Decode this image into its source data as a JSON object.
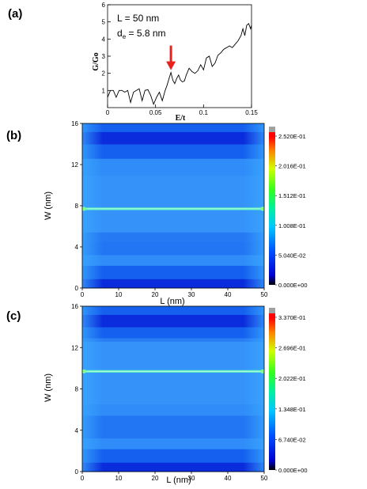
{
  "chart_data": [
    {
      "panel_label": "(a)",
      "type": "line",
      "xlabel": "E/t",
      "ylabel": "G/Go",
      "xlim": [
        0,
        0.15
      ],
      "ylim": [
        0,
        6
      ],
      "x_ticks": [
        "0",
        "0.05",
        "0.1",
        "0.15"
      ],
      "y_ticks": [
        "1",
        "2",
        "3",
        "4",
        "5",
        "6"
      ],
      "annotations": [
        "L = 50 nm",
        "d",
        "e",
        " = 5.8 nm"
      ],
      "arrow": {
        "x": 0.066,
        "y": 2.05,
        "color": "#e8211c"
      },
      "series": [
        {
          "x": [
            0.0,
            0.003,
            0.006,
            0.009,
            0.012,
            0.015,
            0.018,
            0.021,
            0.024,
            0.027,
            0.03,
            0.033,
            0.036,
            0.039,
            0.042,
            0.045,
            0.048,
            0.051,
            0.054,
            0.057,
            0.06,
            0.062,
            0.064,
            0.066,
            0.068,
            0.07,
            0.072,
            0.074,
            0.076,
            0.078,
            0.08,
            0.082,
            0.085,
            0.088,
            0.091,
            0.094,
            0.097,
            0.1,
            0.103,
            0.106,
            0.109,
            0.112,
            0.115,
            0.118,
            0.121,
            0.124,
            0.127,
            0.13,
            0.133,
            0.136,
            0.139,
            0.141,
            0.143,
            0.145,
            0.147,
            0.149,
            0.15
          ],
          "y": [
            0.6,
            1.0,
            1.0,
            0.6,
            1.0,
            1.0,
            0.9,
            1.0,
            0.3,
            0.9,
            1.0,
            1.1,
            0.4,
            1.0,
            1.05,
            0.7,
            0.2,
            0.6,
            0.9,
            0.4,
            1.0,
            1.3,
            1.7,
            2.05,
            1.6,
            1.4,
            1.7,
            1.9,
            1.6,
            1.5,
            1.55,
            1.9,
            2.3,
            2.1,
            2.0,
            2.15,
            2.5,
            2.2,
            2.9,
            3.0,
            2.4,
            2.6,
            3.05,
            3.2,
            3.4,
            3.5,
            3.6,
            3.5,
            3.7,
            3.9,
            4.2,
            4.6,
            4.2,
            4.8,
            4.9,
            4.6,
            4.8
          ],
          "color": "#000000"
        }
      ]
    },
    {
      "panel_label": "(b)",
      "type": "heatmap",
      "xlabel": "L (nm)",
      "ylabel": "W (nm)",
      "xlim": [
        0,
        50
      ],
      "ylim": [
        0,
        16
      ],
      "x_ticks": [
        "0",
        "10",
        "20",
        "30",
        "40",
        "50"
      ],
      "y_ticks": [
        "0",
        "4",
        "8",
        "12",
        "16"
      ],
      "defect_line_w": 7.7,
      "colorbar_ticks": [
        "2.520E-01",
        "2.016E-01",
        "1.512E-01",
        "1.008E-01",
        "5.040E-02",
        "0.000E+00"
      ],
      "colorbar_max": 0.252
    },
    {
      "panel_label": "(c)",
      "type": "heatmap",
      "xlabel": "L (nm)",
      "ylabel": "W (nm)",
      "xlim": [
        0,
        50
      ],
      "ylim": [
        0,
        16
      ],
      "x_ticks": [
        "0",
        "10",
        "20",
        "30",
        "40",
        "50"
      ],
      "y_ticks": [
        "0",
        "4",
        "8",
        "12",
        "16"
      ],
      "defect_line_w": 9.7,
      "colorbar_ticks": [
        "3.370E-01",
        "2.696E-01",
        "2.022E-01",
        "1.348E-01",
        "6.740E-02",
        "0.000E+00"
      ],
      "colorbar_max": 0.337
    }
  ],
  "colors": {
    "colorbar_stops": [
      "#000000",
      "#0000c8",
      "#0033ff",
      "#0080ff",
      "#00d8ff",
      "#00ff80",
      "#40ff00",
      "#ffff00",
      "#ff8000",
      "#ff0000",
      "#a0a0a0"
    ],
    "map_dark": "#0a2cdc",
    "map_mid": "#1560ee",
    "map_light": "#2f8cf8",
    "defect": "#5ef0c0"
  }
}
